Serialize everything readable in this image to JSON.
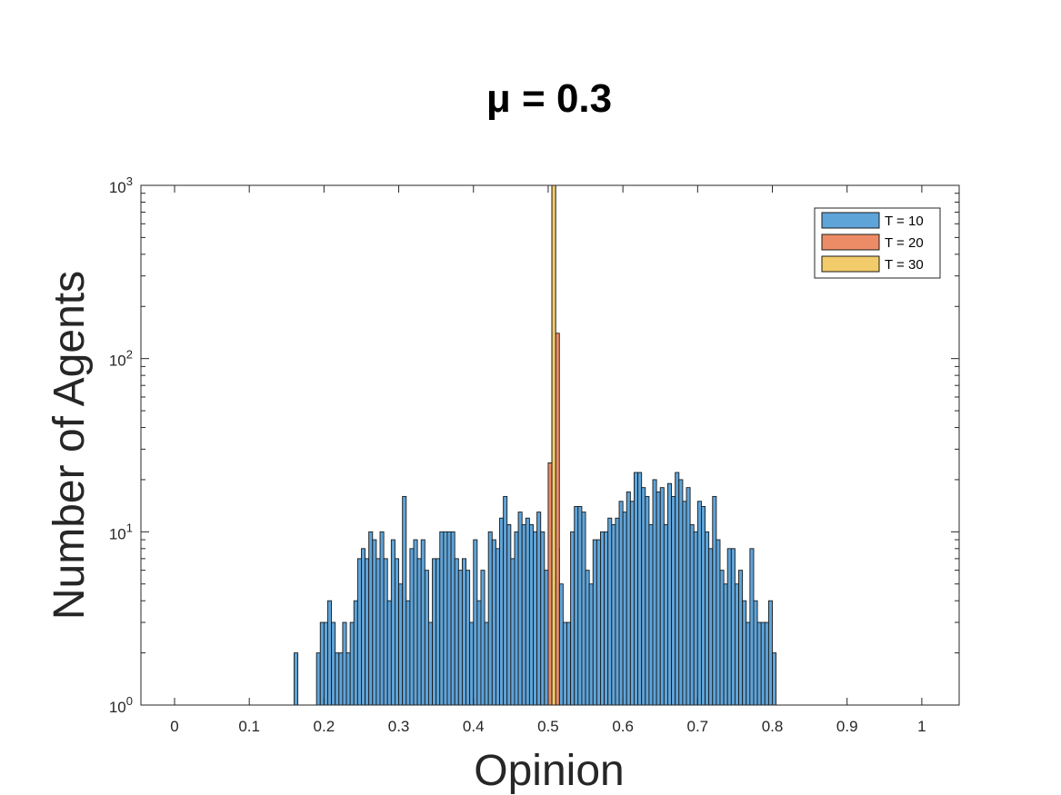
{
  "chart_data": {
    "type": "bar",
    "title": "μ = 0.3",
    "xlabel": "Opinion",
    "ylabel": "Number of Agents",
    "xlim": [
      -0.045,
      1.05
    ],
    "ylim": [
      1,
      1000
    ],
    "yscale": "log",
    "xticks": [
      "0",
      "0.1",
      "0.2",
      "0.3",
      "0.4",
      "0.5",
      "0.6",
      "0.7",
      "0.8",
      "0.9",
      "1"
    ],
    "xtick_values": [
      0,
      0.1,
      0.2,
      0.3,
      0.4,
      0.5,
      0.6,
      0.7,
      0.8,
      0.9,
      1
    ],
    "yticks": [
      {
        "value": 1,
        "base": "10",
        "exp": "0"
      },
      {
        "value": 10,
        "base": "10",
        "exp": "1"
      },
      {
        "value": 100,
        "base": "10",
        "exp": "2"
      },
      {
        "value": 1000,
        "base": "10",
        "exp": "3"
      }
    ],
    "grid": false,
    "legend_position": "top-right",
    "bin_width": 0.005,
    "series": [
      {
        "name": "T = 10",
        "color": "#5fa4d9",
        "bin_start": 0.16,
        "values": [
          2,
          0,
          0,
          0,
          0,
          0,
          2,
          3,
          3,
          4,
          3,
          2,
          2,
          3,
          2,
          3,
          4,
          7,
          8,
          7,
          10,
          9,
          7,
          10,
          7,
          4,
          9,
          7,
          5,
          16,
          4,
          8,
          9,
          7,
          9,
          6,
          3,
          7,
          7,
          10,
          10,
          10,
          10,
          7,
          6,
          7,
          6,
          3,
          9,
          4,
          6,
          3,
          10,
          9,
          8,
          12,
          16,
          11,
          7,
          10,
          13,
          11,
          12,
          11,
          10,
          13,
          10,
          6,
          9,
          5,
          8,
          5,
          3,
          3,
          10,
          14,
          14,
          13,
          6,
          5,
          9,
          9,
          10,
          10,
          12,
          11,
          12,
          15,
          13,
          17,
          15,
          22,
          22,
          18,
          16,
          11,
          20,
          17,
          18,
          11,
          19,
          16,
          22,
          20,
          15,
          18,
          11,
          10,
          15,
          14,
          10,
          8,
          16,
          9,
          6,
          5,
          8,
          8,
          5,
          6,
          4,
          3,
          8,
          4,
          3,
          3,
          3,
          4,
          2
        ],
        "tall_bins": [
          {
            "x": 0.5,
            "value": 14
          }
        ]
      },
      {
        "name": "T = 20",
        "color": "#ec8c66",
        "bins": [
          {
            "x": 0.5,
            "value": 25
          },
          {
            "x": 0.505,
            "value": 1000
          },
          {
            "x": 0.51,
            "value": 140
          }
        ]
      },
      {
        "name": "T = 30",
        "color": "#f2cb6a",
        "bins": [
          {
            "x": 0.505,
            "value": 1000
          }
        ]
      }
    ]
  }
}
